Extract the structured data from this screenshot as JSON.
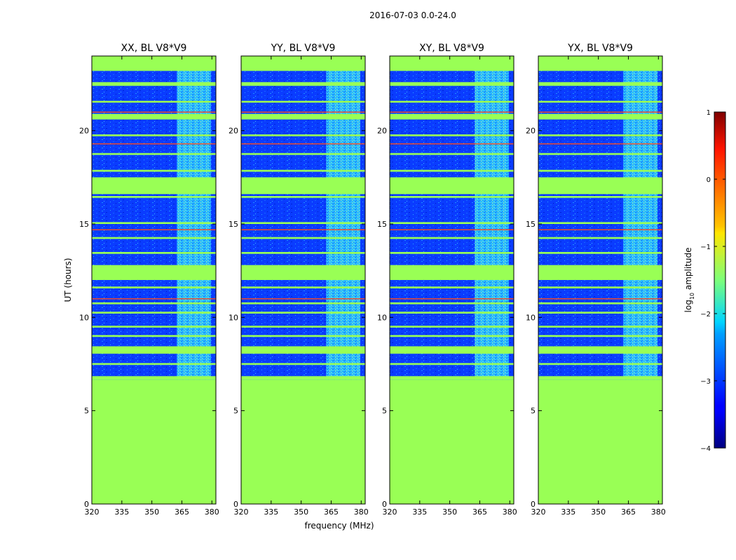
{
  "figure": {
    "suptitle": "2016-07-03 0.0-24.0",
    "ylabel": "UT (hours)",
    "xlabel": "frequency (MHz)"
  },
  "chart_data": [
    {
      "type": "heatmap",
      "title": "XX, BL V8*V9",
      "xlim": [
        320,
        382
      ],
      "ylim": [
        0,
        24
      ],
      "xticks": [
        320,
        335,
        350,
        365,
        380
      ],
      "yticks": [
        0,
        5,
        10,
        15,
        20
      ],
      "data_start_ut": 6.65,
      "rfi_band_mhz": [
        362.5,
        379.5
      ]
    },
    {
      "type": "heatmap",
      "title": "YY, BL V8*V9",
      "xlim": [
        320,
        382
      ],
      "ylim": [
        0,
        24
      ],
      "xticks": [
        320,
        335,
        350,
        365,
        380
      ],
      "yticks": [
        0,
        5,
        10,
        15,
        20
      ],
      "data_start_ut": 6.65,
      "rfi_band_mhz": [
        362.5,
        379.5
      ]
    },
    {
      "type": "heatmap",
      "title": "XY, BL V8*V9",
      "xlim": [
        320,
        382
      ],
      "ylim": [
        0,
        24
      ],
      "xticks": [
        320,
        335,
        350,
        365,
        380
      ],
      "yticks": [
        0,
        5,
        10,
        15,
        20
      ],
      "data_start_ut": 6.65,
      "rfi_band_mhz": [
        362.5,
        379.5
      ]
    },
    {
      "type": "heatmap",
      "title": "YX, BL V8*V9",
      "xlim": [
        320,
        382
      ],
      "ylim": [
        0,
        24
      ],
      "xticks": [
        320,
        335,
        350,
        365,
        380
      ],
      "yticks": [
        0,
        5,
        10,
        15,
        20
      ],
      "data_start_ut": 6.65,
      "rfi_band_mhz": [
        362.5,
        379.5
      ]
    }
  ],
  "flagged_time_ranges_ut": [
    [
      6.65,
      6.85
    ],
    [
      7.45,
      7.55
    ],
    [
      8.05,
      8.45
    ],
    [
      8.95,
      9.05
    ],
    [
      9.45,
      9.55
    ],
    [
      10.2,
      10.3
    ],
    [
      10.7,
      10.8
    ],
    [
      11.55,
      11.65
    ],
    [
      12.0,
      12.8
    ],
    [
      13.4,
      13.5
    ],
    [
      14.2,
      14.3
    ],
    [
      15.0,
      15.1
    ],
    [
      16.4,
      16.5
    ],
    [
      16.6,
      17.5
    ],
    [
      17.8,
      17.9
    ],
    [
      18.7,
      18.8
    ],
    [
      19.7,
      19.8
    ],
    [
      20.6,
      20.9
    ],
    [
      21.5,
      21.6
    ],
    [
      22.4,
      22.6
    ],
    [
      23.2,
      24.0
    ]
  ],
  "red_lines_ut": [
    11.0,
    14.7,
    19.3,
    21.0
  ],
  "colorbar": {
    "label": "log10 amplitude",
    "label_text": "log",
    "label_sub": "10",
    "label_rest": " amplitude",
    "ticks": [
      1,
      0,
      -1,
      -2,
      -3,
      -4
    ],
    "tick_labels": [
      "1",
      "0",
      "−1",
      "−2",
      "−3",
      "−4"
    ],
    "range": [
      -4,
      1
    ],
    "colormap": "jet"
  },
  "colors": {
    "flagged": "#99ff55",
    "background_low": "#0a3cff",
    "red_line": "#ff4a1c"
  }
}
